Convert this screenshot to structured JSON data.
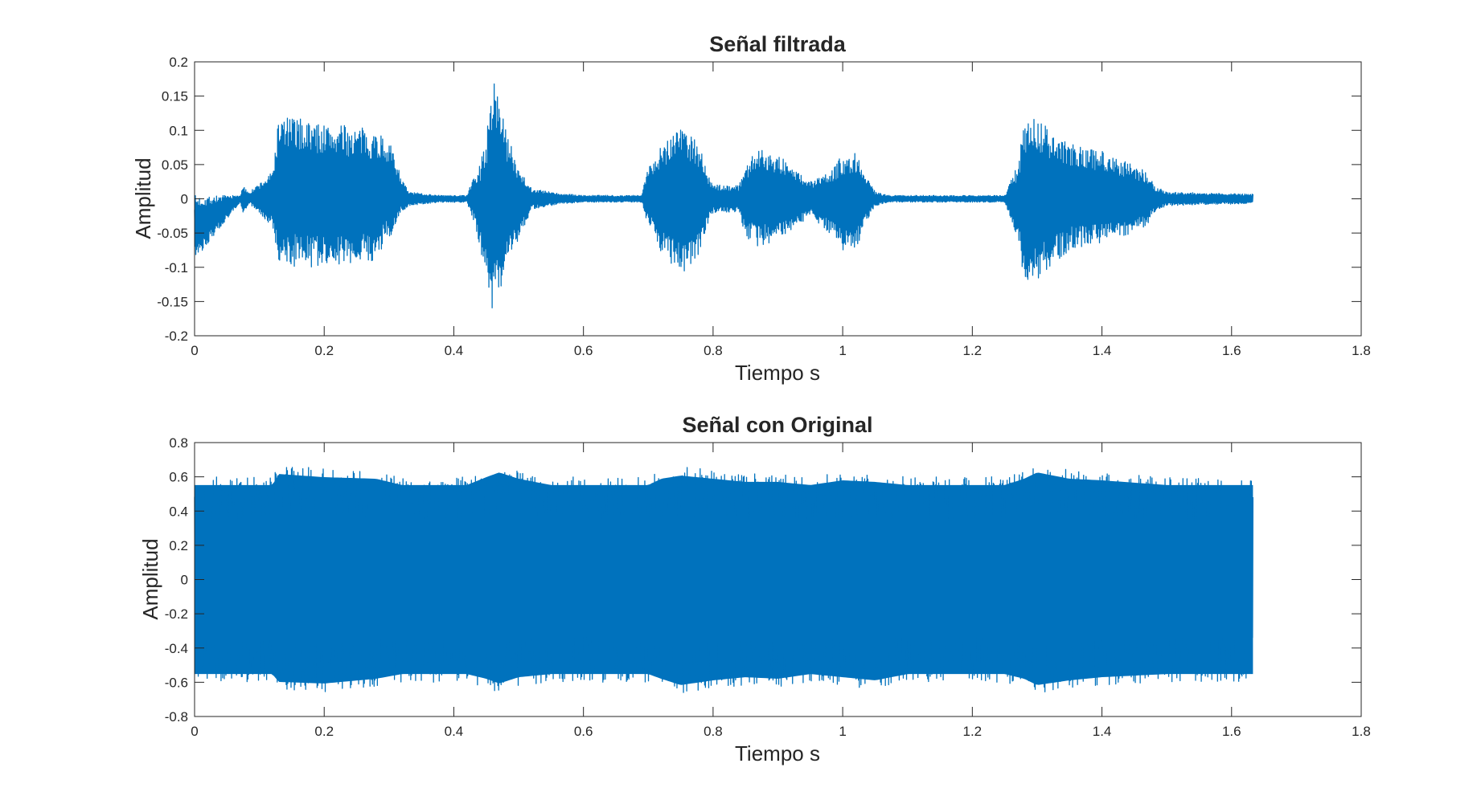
{
  "chart_data": [
    {
      "type": "line",
      "title": "Señal filtrada",
      "xlabel": "Tiempo s",
      "ylabel": "Amplitud",
      "xlim": [
        0,
        1.8
      ],
      "ylim": [
        -0.2,
        0.2
      ],
      "xticks": [
        "0",
        "0.2",
        "0.4",
        "0.6",
        "0.8",
        "1",
        "1.2",
        "1.4",
        "1.6",
        "1.8"
      ],
      "yticks": [
        "-0.2",
        "-0.15",
        "-0.1",
        "-0.05",
        "0",
        "0.05",
        "0.1",
        "0.15",
        "0.2"
      ],
      "color": "#0072BD",
      "signal_end": 1.633,
      "envelope": {
        "x": [
          0,
          0.07,
          0.075,
          0.085,
          0.12,
          0.13,
          0.15,
          0.2,
          0.25,
          0.28,
          0.3,
          0.32,
          0.33,
          0.38,
          0.42,
          0.43,
          0.44,
          0.455,
          0.46,
          0.47,
          0.48,
          0.5,
          0.52,
          0.55,
          0.56,
          0.6,
          0.69,
          0.7,
          0.72,
          0.75,
          0.78,
          0.79,
          0.8,
          0.84,
          0.85,
          0.87,
          0.9,
          0.95,
          0.98,
          1.0,
          1.02,
          1.03,
          1.05,
          1.07,
          1.12,
          1.25,
          1.27,
          1.28,
          1.29,
          1.32,
          1.35,
          1.4,
          1.45,
          1.47,
          1.48,
          1.5,
          1.633
        ],
        "upper": [
          0.005,
          0.005,
          0.018,
          0.01,
          0.04,
          0.12,
          0.12,
          0.11,
          0.105,
          0.1,
          0.085,
          0.03,
          0.01,
          0.005,
          0.005,
          0.03,
          0.05,
          0.12,
          0.19,
          0.16,
          0.1,
          0.05,
          0.015,
          0.01,
          0.008,
          0.005,
          0.005,
          0.05,
          0.08,
          0.115,
          0.08,
          0.04,
          0.02,
          0.02,
          0.05,
          0.075,
          0.065,
          0.025,
          0.04,
          0.065,
          0.07,
          0.05,
          0.01,
          0.005,
          0.005,
          0.005,
          0.05,
          0.11,
          0.13,
          0.1,
          0.08,
          0.07,
          0.05,
          0.04,
          0.02,
          0.01,
          0.007
        ],
        "lower": [
          -0.09,
          -0.005,
          -0.02,
          -0.008,
          -0.04,
          -0.09,
          -0.1,
          -0.1,
          -0.095,
          -0.09,
          -0.06,
          -0.02,
          -0.01,
          -0.005,
          -0.005,
          -0.03,
          -0.07,
          -0.14,
          -0.18,
          -0.15,
          -0.09,
          -0.06,
          -0.015,
          -0.01,
          -0.008,
          -0.005,
          -0.005,
          -0.04,
          -0.08,
          -0.115,
          -0.08,
          -0.04,
          -0.02,
          -0.02,
          -0.055,
          -0.07,
          -0.06,
          -0.025,
          -0.05,
          -0.075,
          -0.08,
          -0.05,
          -0.01,
          -0.005,
          -0.005,
          -0.005,
          -0.06,
          -0.12,
          -0.13,
          -0.1,
          -0.075,
          -0.065,
          -0.05,
          -0.04,
          -0.02,
          -0.01,
          -0.007
        ]
      }
    },
    {
      "type": "line",
      "title": "Señal con Original",
      "xlabel": "Tiempo s",
      "ylabel": "Amplitud",
      "xlim": [
        0,
        1.8
      ],
      "ylim": [
        -0.8,
        0.8
      ],
      "xticks": [
        "0",
        "0.2",
        "0.4",
        "0.6",
        "0.8",
        "1",
        "1.2",
        "1.4",
        "1.6",
        "1.8"
      ],
      "yticks": [
        "-0.8",
        "-0.6",
        "-0.4",
        "-0.2",
        "0",
        "0.2",
        "0.4",
        "0.6",
        "0.8"
      ],
      "color": "#0072BD",
      "signal_end": 1.633,
      "envelope": {
        "x": [
          0,
          0.12,
          0.13,
          0.2,
          0.28,
          0.32,
          0.42,
          0.45,
          0.47,
          0.5,
          0.55,
          0.7,
          0.72,
          0.75,
          0.8,
          0.85,
          0.9,
          0.95,
          1.0,
          1.05,
          1.1,
          1.25,
          1.28,
          1.3,
          1.35,
          1.4,
          1.5,
          1.633
        ],
        "upper": [
          0.6,
          0.6,
          0.67,
          0.65,
          0.64,
          0.6,
          0.6,
          0.65,
          0.68,
          0.64,
          0.6,
          0.6,
          0.64,
          0.66,
          0.64,
          0.62,
          0.62,
          0.6,
          0.63,
          0.62,
          0.6,
          0.6,
          0.64,
          0.68,
          0.64,
          0.63,
          0.6,
          0.6
        ],
        "lower": [
          -0.6,
          -0.6,
          -0.65,
          -0.66,
          -0.63,
          -0.6,
          -0.6,
          -0.63,
          -0.66,
          -0.62,
          -0.6,
          -0.6,
          -0.63,
          -0.67,
          -0.64,
          -0.62,
          -0.63,
          -0.6,
          -0.62,
          -0.64,
          -0.6,
          -0.6,
          -0.63,
          -0.67,
          -0.64,
          -0.62,
          -0.6,
          -0.6
        ]
      }
    }
  ]
}
